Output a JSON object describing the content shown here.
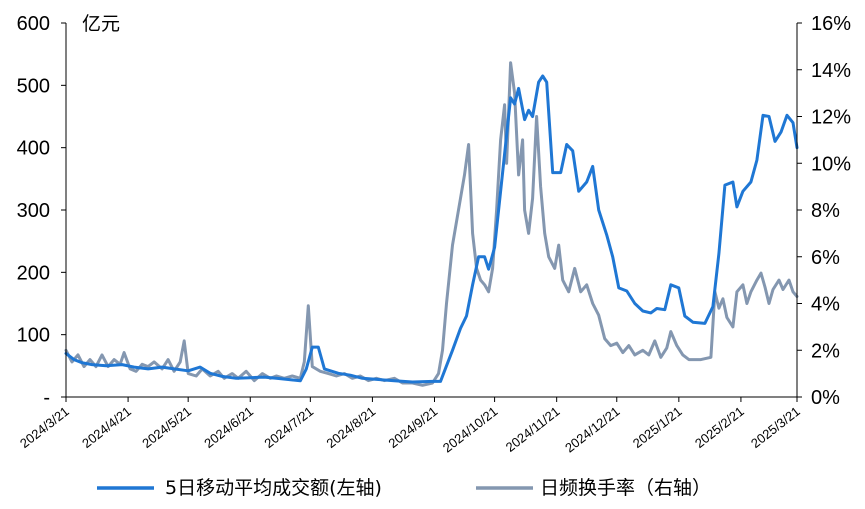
{
  "chart_data": {
    "type": "line",
    "left_axis": {
      "unit": "亿元",
      "ticks": [
        {
          "value": 0,
          "label": "-"
        },
        {
          "value": 100,
          "label": "100"
        },
        {
          "value": 200,
          "label": "200"
        },
        {
          "value": 300,
          "label": "300"
        },
        {
          "value": 400,
          "label": "400"
        },
        {
          "value": 500,
          "label": "500"
        },
        {
          "value": 600,
          "label": "600"
        }
      ],
      "range": [
        0,
        600
      ]
    },
    "right_axis": {
      "ticks": [
        "0%",
        "2%",
        "4%",
        "6%",
        "8%",
        "10%",
        "12%",
        "14%",
        "16%"
      ],
      "range": [
        0,
        16
      ]
    },
    "x_axis": {
      "range": [
        "2024-03-21",
        "2025-03-21"
      ],
      "ticks": [
        {
          "date": "2024-03-21",
          "label": "2024/3/21"
        },
        {
          "date": "2024-04-21",
          "label": "2024/4/21"
        },
        {
          "date": "2024-05-21",
          "label": "2024/5/21"
        },
        {
          "date": "2024-06-21",
          "label": "2024/6/21"
        },
        {
          "date": "2024-07-21",
          "label": "2024/7/21"
        },
        {
          "date": "2024-08-21",
          "label": "2024/8/21"
        },
        {
          "date": "2024-09-21",
          "label": "2024/9/21"
        },
        {
          "date": "2024-10-21",
          "label": "2024/10/21"
        },
        {
          "date": "2024-11-21",
          "label": "2024/11/21"
        },
        {
          "date": "2024-12-21",
          "label": "2024/12/21"
        },
        {
          "date": "2025-01-21",
          "label": "2025/1/21"
        },
        {
          "date": "2025-02-21",
          "label": "2025/2/21"
        },
        {
          "date": "2025-03-21",
          "label": "2025/3/21"
        }
      ]
    },
    "legend": {
      "placement": "bottom"
    },
    "grid": false,
    "series": [
      {
        "name": "5日移动平均成交额(左轴)",
        "axis": "left",
        "color": "#1f77d4",
        "points": [
          [
            "2024-03-21",
            70
          ],
          [
            "2024-03-25",
            60
          ],
          [
            "2024-03-29",
            55
          ],
          [
            "2024-04-03",
            52
          ],
          [
            "2024-04-10",
            50
          ],
          [
            "2024-04-18",
            52
          ],
          [
            "2024-04-24",
            48
          ],
          [
            "2024-05-01",
            45
          ],
          [
            "2024-05-08",
            48
          ],
          [
            "2024-05-14",
            45
          ],
          [
            "2024-05-21",
            42
          ],
          [
            "2024-05-27",
            48
          ],
          [
            "2024-06-01",
            38
          ],
          [
            "2024-06-07",
            33
          ],
          [
            "2024-06-14",
            30
          ],
          [
            "2024-06-21",
            31
          ],
          [
            "2024-06-28",
            32
          ],
          [
            "2024-07-04",
            30
          ],
          [
            "2024-07-10",
            28
          ],
          [
            "2024-07-16",
            26
          ],
          [
            "2024-07-19",
            45
          ],
          [
            "2024-07-22",
            80
          ],
          [
            "2024-07-25",
            80
          ],
          [
            "2024-07-28",
            45
          ],
          [
            "2024-08-04",
            38
          ],
          [
            "2024-08-10",
            35
          ],
          [
            "2024-08-16",
            30
          ],
          [
            "2024-08-24",
            28
          ],
          [
            "2024-09-01",
            26
          ],
          [
            "2024-09-10",
            24
          ],
          [
            "2024-09-20",
            25
          ],
          [
            "2024-09-24",
            25
          ],
          [
            "2024-09-27",
            50
          ],
          [
            "2024-09-30",
            75
          ],
          [
            "2024-10-04",
            110
          ],
          [
            "2024-10-07",
            130
          ],
          [
            "2024-10-10",
            180
          ],
          [
            "2024-10-13",
            225
          ],
          [
            "2024-10-16",
            225
          ],
          [
            "2024-10-18",
            205
          ],
          [
            "2024-10-21",
            240
          ],
          [
            "2024-10-24",
            330
          ],
          [
            "2024-10-27",
            420
          ],
          [
            "2024-10-29",
            480
          ],
          [
            "2024-10-31",
            470
          ],
          [
            "2024-11-02",
            495
          ],
          [
            "2024-11-05",
            445
          ],
          [
            "2024-11-07",
            460
          ],
          [
            "2024-11-09",
            450
          ],
          [
            "2024-11-12",
            505
          ],
          [
            "2024-11-14",
            515
          ],
          [
            "2024-11-16",
            505
          ],
          [
            "2024-11-19",
            360
          ],
          [
            "2024-11-23",
            360
          ],
          [
            "2024-11-26",
            405
          ],
          [
            "2024-11-29",
            395
          ],
          [
            "2024-12-02",
            330
          ],
          [
            "2024-12-06",
            345
          ],
          [
            "2024-12-09",
            370
          ],
          [
            "2024-12-12",
            300
          ],
          [
            "2024-12-16",
            260
          ],
          [
            "2024-12-19",
            225
          ],
          [
            "2024-12-22",
            175
          ],
          [
            "2024-12-26",
            170
          ],
          [
            "2024-12-30",
            150
          ],
          [
            "2025-01-03",
            138
          ],
          [
            "2025-01-07",
            135
          ],
          [
            "2025-01-10",
            142
          ],
          [
            "2025-01-14",
            140
          ],
          [
            "2025-01-17",
            180
          ],
          [
            "2025-01-21",
            175
          ],
          [
            "2025-01-24",
            130
          ],
          [
            "2025-01-28",
            120
          ],
          [
            "2025-02-03",
            118
          ],
          [
            "2025-02-07",
            145
          ],
          [
            "2025-02-10",
            230
          ],
          [
            "2025-02-13",
            340
          ],
          [
            "2025-02-17",
            345
          ],
          [
            "2025-02-19",
            305
          ],
          [
            "2025-02-22",
            330
          ],
          [
            "2025-02-26",
            345
          ],
          [
            "2025-03-01",
            380
          ],
          [
            "2025-03-04",
            452
          ],
          [
            "2025-03-07",
            450
          ],
          [
            "2025-03-10",
            410
          ],
          [
            "2025-03-13",
            425
          ],
          [
            "2025-03-16",
            452
          ],
          [
            "2025-03-19",
            440
          ],
          [
            "2025-03-21",
            400
          ]
        ]
      },
      {
        "name": "日频换手率（右轴）",
        "axis": "right",
        "color": "#8497b0",
        "points": [
          [
            "2024-03-21",
            2.0
          ],
          [
            "2024-03-24",
            1.5
          ],
          [
            "2024-03-27",
            1.8
          ],
          [
            "2024-03-30",
            1.3
          ],
          [
            "2024-04-02",
            1.6
          ],
          [
            "2024-04-05",
            1.3
          ],
          [
            "2024-04-08",
            1.8
          ],
          [
            "2024-04-11",
            1.3
          ],
          [
            "2024-04-14",
            1.6
          ],
          [
            "2024-04-17",
            1.4
          ],
          [
            "2024-04-19",
            1.9
          ],
          [
            "2024-04-22",
            1.2
          ],
          [
            "2024-04-25",
            1.1
          ],
          [
            "2024-04-28",
            1.4
          ],
          [
            "2024-05-01",
            1.3
          ],
          [
            "2024-05-04",
            1.5
          ],
          [
            "2024-05-08",
            1.2
          ],
          [
            "2024-05-11",
            1.6
          ],
          [
            "2024-05-14",
            1.1
          ],
          [
            "2024-05-17",
            1.5
          ],
          [
            "2024-05-19",
            2.4
          ],
          [
            "2024-05-21",
            1.0
          ],
          [
            "2024-05-25",
            0.9
          ],
          [
            "2024-05-28",
            1.2
          ],
          [
            "2024-06-01",
            0.9
          ],
          [
            "2024-06-05",
            1.1
          ],
          [
            "2024-06-08",
            0.8
          ],
          [
            "2024-06-12",
            1.0
          ],
          [
            "2024-06-15",
            0.8
          ],
          [
            "2024-06-19",
            1.1
          ],
          [
            "2024-06-23",
            0.7
          ],
          [
            "2024-06-27",
            1.0
          ],
          [
            "2024-07-01",
            0.8
          ],
          [
            "2024-07-04",
            0.9
          ],
          [
            "2024-07-08",
            0.8
          ],
          [
            "2024-07-12",
            0.9
          ],
          [
            "2024-07-16",
            0.8
          ],
          [
            "2024-07-18",
            1.5
          ],
          [
            "2024-07-20",
            3.9
          ],
          [
            "2024-07-22",
            1.3
          ],
          [
            "2024-07-26",
            1.1
          ],
          [
            "2024-07-30",
            1.0
          ],
          [
            "2024-08-03",
            0.9
          ],
          [
            "2024-08-07",
            1.0
          ],
          [
            "2024-08-11",
            0.8
          ],
          [
            "2024-08-15",
            0.9
          ],
          [
            "2024-08-19",
            0.7
          ],
          [
            "2024-08-23",
            0.8
          ],
          [
            "2024-08-27",
            0.7
          ],
          [
            "2024-09-01",
            0.8
          ],
          [
            "2024-09-05",
            0.6
          ],
          [
            "2024-09-10",
            0.6
          ],
          [
            "2024-09-15",
            0.5
          ],
          [
            "2024-09-20",
            0.6
          ],
          [
            "2024-09-23",
            1.0
          ],
          [
            "2024-09-25",
            2.0
          ],
          [
            "2024-09-27",
            4.0
          ],
          [
            "2024-09-30",
            6.5
          ],
          [
            "2024-10-03",
            8.0
          ],
          [
            "2024-10-06",
            9.5
          ],
          [
            "2024-10-08",
            10.8
          ],
          [
            "2024-10-10",
            7.0
          ],
          [
            "2024-10-12",
            5.5
          ],
          [
            "2024-10-14",
            5.0
          ],
          [
            "2024-10-16",
            4.8
          ],
          [
            "2024-10-18",
            4.5
          ],
          [
            "2024-10-20",
            5.5
          ],
          [
            "2024-10-22",
            8.0
          ],
          [
            "2024-10-24",
            11.0
          ],
          [
            "2024-10-26",
            12.5
          ],
          [
            "2024-10-27",
            10.0
          ],
          [
            "2024-10-29",
            14.3
          ],
          [
            "2024-10-31",
            13.0
          ],
          [
            "2024-11-02",
            9.5
          ],
          [
            "2024-11-04",
            11.0
          ],
          [
            "2024-11-05",
            8.0
          ],
          [
            "2024-11-07",
            7.0
          ],
          [
            "2024-11-09",
            8.5
          ],
          [
            "2024-11-11",
            12.0
          ],
          [
            "2024-11-13",
            9.0
          ],
          [
            "2024-11-15",
            7.0
          ],
          [
            "2024-11-17",
            6.0
          ],
          [
            "2024-11-20",
            5.5
          ],
          [
            "2024-11-22",
            6.5
          ],
          [
            "2024-11-24",
            5.0
          ],
          [
            "2024-11-27",
            4.5
          ],
          [
            "2024-11-30",
            5.5
          ],
          [
            "2024-12-03",
            4.5
          ],
          [
            "2024-12-06",
            4.8
          ],
          [
            "2024-12-09",
            4.0
          ],
          [
            "2024-12-12",
            3.5
          ],
          [
            "2024-12-15",
            2.5
          ],
          [
            "2024-12-18",
            2.2
          ],
          [
            "2024-12-21",
            2.3
          ],
          [
            "2024-12-24",
            1.9
          ],
          [
            "2024-12-27",
            2.2
          ],
          [
            "2024-12-30",
            1.8
          ],
          [
            "2025-01-03",
            2.0
          ],
          [
            "2025-01-06",
            1.8
          ],
          [
            "2025-01-09",
            2.4
          ],
          [
            "2025-01-12",
            1.7
          ],
          [
            "2025-01-15",
            2.1
          ],
          [
            "2025-01-17",
            2.8
          ],
          [
            "2025-01-20",
            2.2
          ],
          [
            "2025-01-23",
            1.8
          ],
          [
            "2025-01-26",
            1.6
          ],
          [
            "2025-02-01",
            1.6
          ],
          [
            "2025-02-06",
            1.7
          ],
          [
            "2025-02-08",
            4.5
          ],
          [
            "2025-02-10",
            3.8
          ],
          [
            "2025-02-12",
            4.2
          ],
          [
            "2025-02-14",
            3.4
          ],
          [
            "2025-02-17",
            3.0
          ],
          [
            "2025-02-19",
            4.5
          ],
          [
            "2025-02-22",
            4.8
          ],
          [
            "2025-02-24",
            4.0
          ],
          [
            "2025-02-26",
            4.5
          ],
          [
            "2025-03-01",
            5.0
          ],
          [
            "2025-03-03",
            5.3
          ],
          [
            "2025-03-05",
            4.7
          ],
          [
            "2025-03-07",
            4.0
          ],
          [
            "2025-03-09",
            4.6
          ],
          [
            "2025-03-12",
            5.0
          ],
          [
            "2025-03-14",
            4.6
          ],
          [
            "2025-03-17",
            5.0
          ],
          [
            "2025-03-19",
            4.5
          ],
          [
            "2025-03-21",
            4.3
          ]
        ]
      }
    ]
  }
}
